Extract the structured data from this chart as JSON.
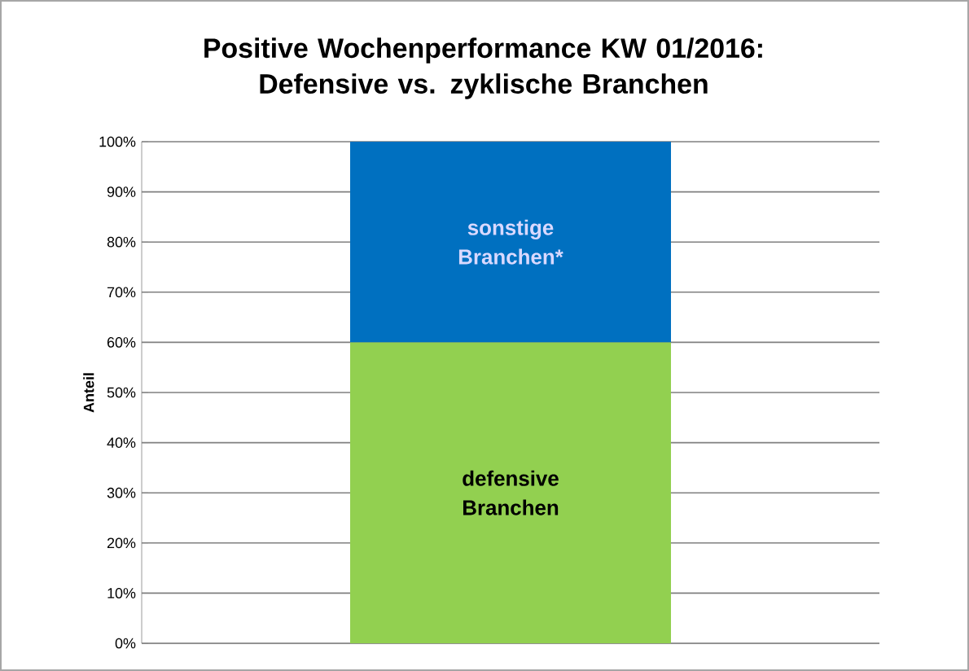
{
  "chart_data": {
    "type": "bar",
    "stacked": true,
    "title": "Positive Wochenperformance KW 01/2016: Defensive vs. zyklische Branchen",
    "ylabel": "Anteil",
    "categories": [
      null
    ],
    "series": [
      {
        "name": "defensive Branchen",
        "color": "#92d050",
        "values": [
          60
        ]
      },
      {
        "name": "sonstige Branchen*",
        "color": "#0070c0",
        "values": [
          40
        ]
      }
    ],
    "ylim": [
      0,
      100
    ],
    "yticks": [
      {
        "value": 0,
        "label": "0%"
      },
      {
        "value": 10,
        "label": "10%"
      },
      {
        "value": 20,
        "label": "20%"
      },
      {
        "value": 30,
        "label": "30%"
      },
      {
        "value": 40,
        "label": "40%"
      },
      {
        "value": 50,
        "label": "50%"
      },
      {
        "value": 60,
        "label": "60%"
      },
      {
        "value": 70,
        "label": "70%"
      },
      {
        "value": 80,
        "label": "80%"
      },
      {
        "value": 90,
        "label": "90%"
      },
      {
        "value": 100,
        "label": "100%"
      }
    ],
    "grid": "y"
  }
}
